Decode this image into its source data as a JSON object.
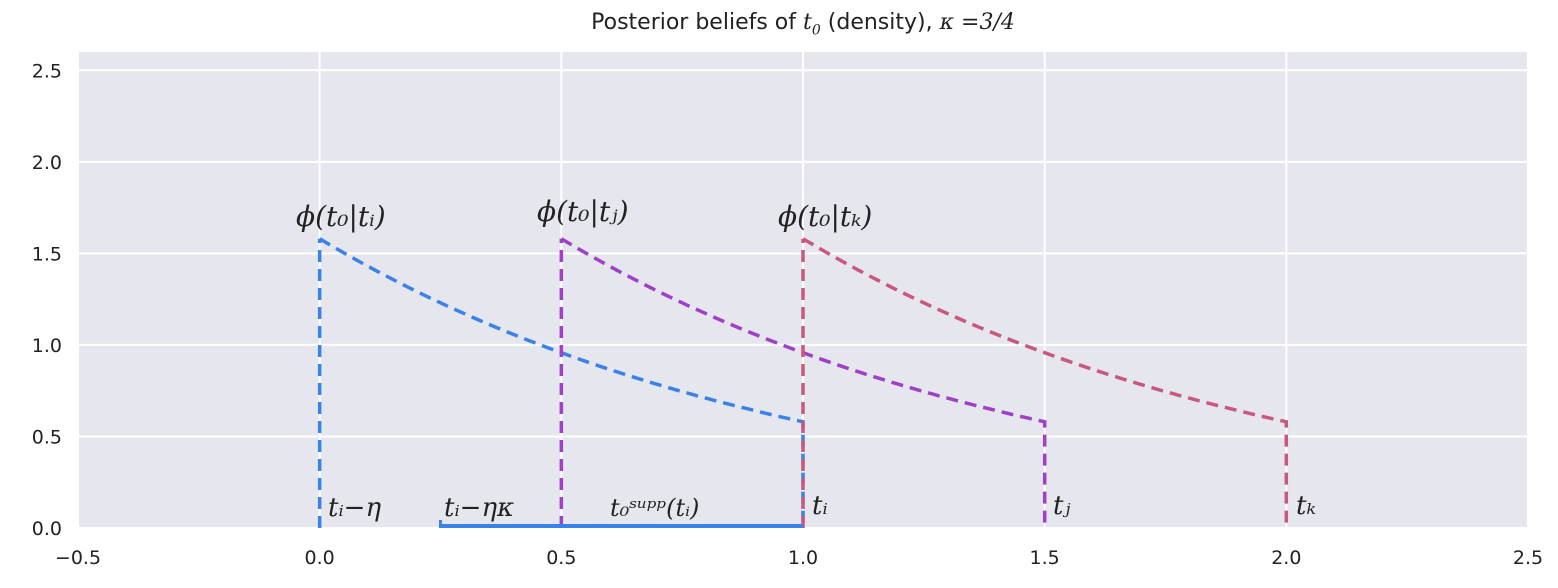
{
  "title": {
    "prefix": "Posterior beliefs of",
    "var": "t",
    "var_sub": "0",
    "middle": "(density),",
    "param": "κ =3/4"
  },
  "colors": {
    "background": "#e6e6ef",
    "grid": "#ffffff",
    "blue": "#3b82e8",
    "purple": "#a040c8",
    "pink": "#c8587e"
  },
  "chart_data": {
    "type": "line",
    "xlim": [
      -0.5,
      2.5
    ],
    "ylim": [
      0,
      2.6
    ],
    "xticks": [
      "−0.5",
      "0.0",
      "0.5",
      "1.0",
      "1.5",
      "2.0",
      "2.5"
    ],
    "xtick_values": [
      -0.5,
      0.0,
      0.5,
      1.0,
      1.5,
      2.0,
      2.5
    ],
    "yticks": [
      "0.0",
      "0.5",
      "1.0",
      "1.5",
      "2.0",
      "2.5"
    ],
    "ytick_values": [
      0.0,
      0.5,
      1.0,
      1.5,
      2.0,
      2.5
    ],
    "grid": true,
    "series": [
      {
        "color_key": "blue",
        "start": 0.0,
        "end": 1.0,
        "y_start": 1.58,
        "y_end": 0.58
      },
      {
        "color_key": "purple",
        "start": 0.5,
        "end": 1.5,
        "y_start": 1.58,
        "y_end": 0.58
      },
      {
        "color_key": "pink",
        "start": 1.0,
        "end": 2.0,
        "y_start": 1.58,
        "y_end": 0.58
      }
    ],
    "support_segment": {
      "x0": 0.25,
      "x1": 1.0,
      "y": 0.0
    },
    "annotations": {
      "phi_i": "ϕ(t₀|tᵢ)",
      "phi_j": "ϕ(t₀|tⱼ)",
      "phi_k": "ϕ(t₀|tₖ)",
      "ti_minus_eta": "tᵢ−η",
      "ti_minus_eta_kappa": "tᵢ−ηκ",
      "t0_supp": "t₀ˢᵘᵖᵖ(tᵢ)",
      "ti": "tᵢ",
      "tj": "tⱼ",
      "tk": "tₖ"
    }
  }
}
